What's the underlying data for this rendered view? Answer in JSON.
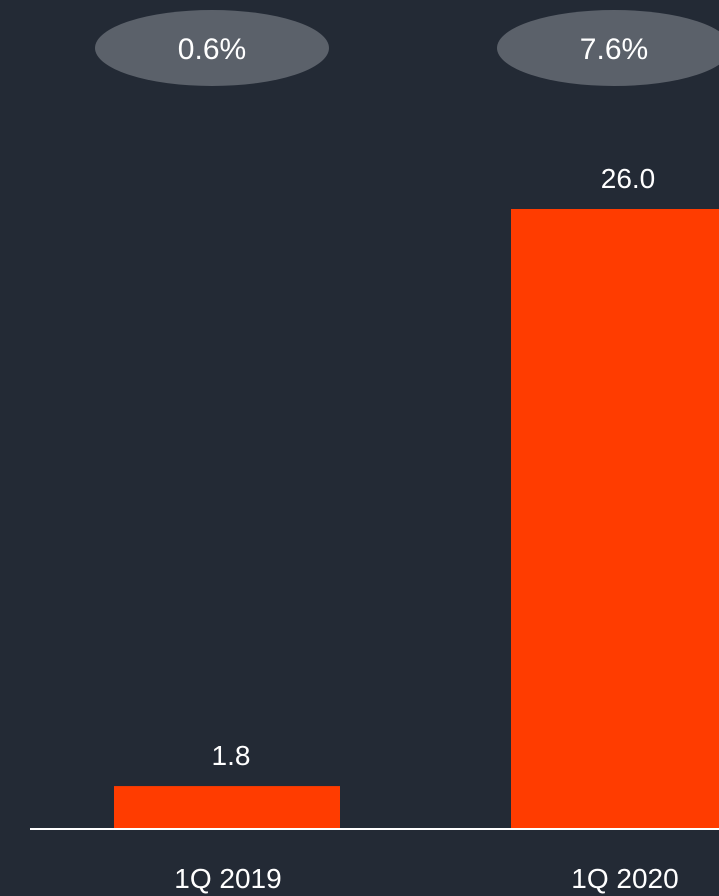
{
  "colors": {
    "background": "#232a35",
    "bar": "#ff3c00",
    "pill": "#5b616a",
    "text": "#ffffff",
    "axis": "#ffffff"
  },
  "chart_data": {
    "type": "bar",
    "categories": [
      "1Q 2019",
      "1Q 2020"
    ],
    "values": [
      1.8,
      26.0
    ],
    "value_labels": [
      "1.8",
      "26.0"
    ],
    "percent_labels": [
      "0.6%",
      "7.6%"
    ],
    "title": "",
    "xlabel": "",
    "ylabel": "",
    "ylim": [
      0,
      26.0
    ],
    "grid": false,
    "legend": "none"
  }
}
